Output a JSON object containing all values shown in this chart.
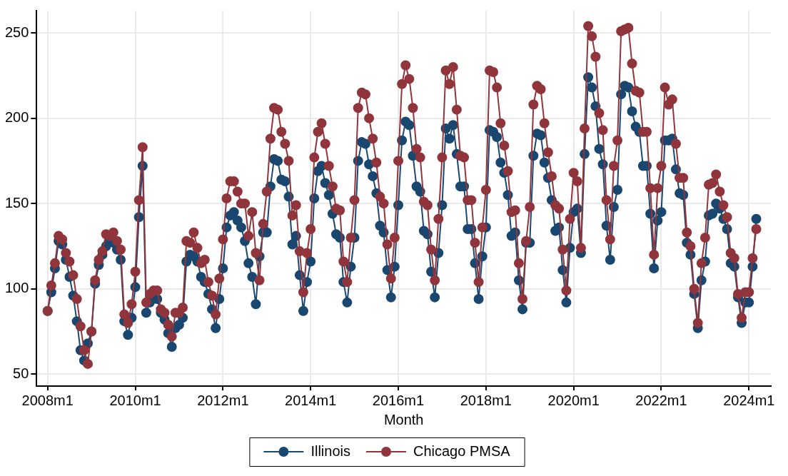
{
  "chart_data": {
    "type": "line",
    "xlabel": "Month",
    "x": [
      "2008-01",
      "2008-02",
      "2008-03",
      "2008-04",
      "2008-05",
      "2008-06",
      "2008-07",
      "2008-08",
      "2008-09",
      "2008-10",
      "2008-11",
      "2008-12",
      "2009-01",
      "2009-02",
      "2009-03",
      "2009-04",
      "2009-05",
      "2009-06",
      "2009-07",
      "2009-08",
      "2009-09",
      "2009-10",
      "2009-11",
      "2009-12",
      "2010-01",
      "2010-02",
      "2010-03",
      "2010-04",
      "2010-05",
      "2010-06",
      "2010-07",
      "2010-08",
      "2010-09",
      "2010-10",
      "2010-11",
      "2010-12",
      "2011-01",
      "2011-02",
      "2011-03",
      "2011-04",
      "2011-05",
      "2011-06",
      "2011-07",
      "2011-08",
      "2011-09",
      "2011-10",
      "2011-11",
      "2011-12",
      "2012-01",
      "2012-02",
      "2012-03",
      "2012-04",
      "2012-05",
      "2012-06",
      "2012-07",
      "2012-08",
      "2012-09",
      "2012-10",
      "2012-11",
      "2012-12",
      "2013-01",
      "2013-02",
      "2013-03",
      "2013-04",
      "2013-05",
      "2013-06",
      "2013-07",
      "2013-08",
      "2013-09",
      "2013-10",
      "2013-11",
      "2013-12",
      "2014-01",
      "2014-02",
      "2014-03",
      "2014-04",
      "2014-05",
      "2014-06",
      "2014-07",
      "2014-08",
      "2014-09",
      "2014-10",
      "2014-11",
      "2014-12",
      "2015-01",
      "2015-02",
      "2015-03",
      "2015-04",
      "2015-05",
      "2015-06",
      "2015-07",
      "2015-08",
      "2015-09",
      "2015-10",
      "2015-11",
      "2015-12",
      "2016-01",
      "2016-02",
      "2016-03",
      "2016-04",
      "2016-05",
      "2016-06",
      "2016-07",
      "2016-08",
      "2016-09",
      "2016-10",
      "2016-11",
      "2016-12",
      "2017-01",
      "2017-02",
      "2017-03",
      "2017-04",
      "2017-05",
      "2017-06",
      "2017-07",
      "2017-08",
      "2017-09",
      "2017-10",
      "2017-11",
      "2017-12",
      "2018-01",
      "2018-02",
      "2018-03",
      "2018-04",
      "2018-05",
      "2018-06",
      "2018-07",
      "2018-08",
      "2018-09",
      "2018-10",
      "2018-11",
      "2018-12",
      "2019-01",
      "2019-02",
      "2019-03",
      "2019-04",
      "2019-05",
      "2019-06",
      "2019-07",
      "2019-08",
      "2019-09",
      "2019-10",
      "2019-11",
      "2019-12",
      "2020-01",
      "2020-02",
      "2020-03",
      "2020-04",
      "2020-05",
      "2020-06",
      "2020-07",
      "2020-08",
      "2020-09",
      "2020-10",
      "2020-11",
      "2020-12",
      "2021-01",
      "2021-02",
      "2021-03",
      "2021-04",
      "2021-05",
      "2021-06",
      "2021-07",
      "2021-08",
      "2021-09",
      "2021-10",
      "2021-11",
      "2021-12",
      "2022-01",
      "2022-02",
      "2022-03",
      "2022-04",
      "2022-05",
      "2022-06",
      "2022-07",
      "2022-08",
      "2022-09",
      "2022-10",
      "2022-11",
      "2022-12",
      "2023-01",
      "2023-02",
      "2023-03",
      "2023-04",
      "2023-05",
      "2023-06",
      "2023-07",
      "2023-08",
      "2023-09",
      "2023-10",
      "2023-11",
      "2023-12",
      "2024-01",
      "2024-02",
      "2024-03"
    ],
    "series": [
      {
        "name": "Illinois",
        "color": "#1a476f",
        "values": [
          87,
          98,
          112,
          128,
          126,
          117,
          107,
          96,
          81,
          64,
          58,
          68,
          75,
          103,
          114,
          120,
          125,
          128,
          127,
          123,
          117,
          81,
          73,
          83,
          101,
          142,
          172,
          86,
          92,
          95,
          94,
          86,
          82,
          74,
          66,
          77,
          79,
          83,
          116,
          120,
          119,
          116,
          107,
          104,
          97,
          88,
          77,
          94,
          112,
          136,
          143,
          145,
          140,
          136,
          128,
          115,
          107,
          91,
          119,
          133,
          133,
          160,
          176,
          175,
          164,
          163,
          154,
          126,
          131,
          108,
          87,
          104,
          116,
          153,
          169,
          172,
          162,
          155,
          144,
          132,
          130,
          104,
          92,
          113,
          130,
          175,
          186,
          185,
          173,
          166,
          156,
          137,
          133,
          111,
          95,
          113,
          149,
          187,
          198,
          196,
          178,
          160,
          157,
          134,
          132,
          110,
          95,
          121,
          149,
          194,
          188,
          196,
          179,
          160,
          160,
          135,
          135,
          115,
          94,
          119,
          136,
          193,
          192,
          189,
          174,
          168,
          155,
          131,
          133,
          105,
          88,
          127,
          127,
          178,
          191,
          190,
          174,
          165,
          152,
          134,
          136,
          111,
          92,
          124,
          145,
          147,
          121,
          179,
          224,
          218,
          207,
          182,
          173,
          137,
          117,
          148,
          158,
          214,
          219,
          218,
          204,
          195,
          192,
          172,
          172,
          144,
          112,
          140,
          145,
          187,
          187,
          188,
          170,
          156,
          155,
          127,
          120,
          97,
          77,
          105,
          116,
          143,
          144,
          150,
          147,
          141,
          135,
          115,
          113,
          95,
          80,
          92,
          92,
          113,
          141
        ]
      },
      {
        "name": "Chicago PMSA",
        "color": "#90353b",
        "values": [
          87,
          102,
          115,
          131,
          129,
          121,
          116,
          108,
          94,
          78,
          64,
          56,
          75,
          105,
          117,
          122,
          132,
          131,
          133,
          128,
          123,
          85,
          80,
          91,
          110,
          152,
          183,
          92,
          97,
          99,
          99,
          88,
          86,
          79,
          72,
          86,
          86,
          89,
          128,
          127,
          133,
          124,
          115,
          117,
          104,
          96,
          85,
          106,
          129,
          153,
          163,
          163,
          157,
          150,
          150,
          131,
          145,
          121,
          105,
          138,
          157,
          188,
          206,
          205,
          192,
          185,
          175,
          143,
          149,
          122,
          98,
          121,
          135,
          177,
          192,
          197,
          185,
          172,
          160,
          147,
          146,
          116,
          104,
          130,
          152,
          206,
          215,
          214,
          200,
          188,
          174,
          154,
          150,
          126,
          106,
          130,
          175,
          220,
          231,
          223,
          206,
          182,
          177,
          151,
          149,
          123,
          105,
          141,
          177,
          228,
          220,
          230,
          205,
          178,
          177,
          152,
          152,
          127,
          104,
          136,
          158,
          228,
          227,
          218,
          197,
          184,
          169,
          145,
          146,
          115,
          94,
          128,
          148,
          208,
          219,
          217,
          197,
          180,
          166,
          149,
          147,
          123,
          99,
          141,
          168,
          163,
          124,
          194,
          254,
          248,
          236,
          203,
          193,
          152,
          129,
          172,
          187,
          251,
          252,
          253,
          232,
          216,
          215,
          192,
          192,
          159,
          120,
          159,
          172,
          218,
          208,
          211,
          185,
          165,
          165,
          133,
          125,
          100,
          80,
          115,
          130,
          161,
          162,
          167,
          157,
          149,
          142,
          121,
          118,
          97,
          83,
          98,
          98,
          118,
          135
        ]
      }
    ],
    "xlim": [
      "2007-10",
      "2024-07"
    ],
    "xticks": [
      {
        "value": "2008-01",
        "label": "2008m1"
      },
      {
        "value": "2010-01",
        "label": "2010m1"
      },
      {
        "value": "2012-01",
        "label": "2012m1"
      },
      {
        "value": "2014-01",
        "label": "2014m1"
      },
      {
        "value": "2016-01",
        "label": "2016m1"
      },
      {
        "value": "2018-01",
        "label": "2018m1"
      },
      {
        "value": "2020-01",
        "label": "2020m1"
      },
      {
        "value": "2022-01",
        "label": "2022m1"
      },
      {
        "value": "2024-01",
        "label": "2024m1"
      }
    ],
    "ylim": [
      43,
      263
    ],
    "yticks": [
      50,
      100,
      150,
      200,
      250
    ],
    "grid": true,
    "legend": "bottom",
    "marker": "circle",
    "line_style": "solid"
  }
}
